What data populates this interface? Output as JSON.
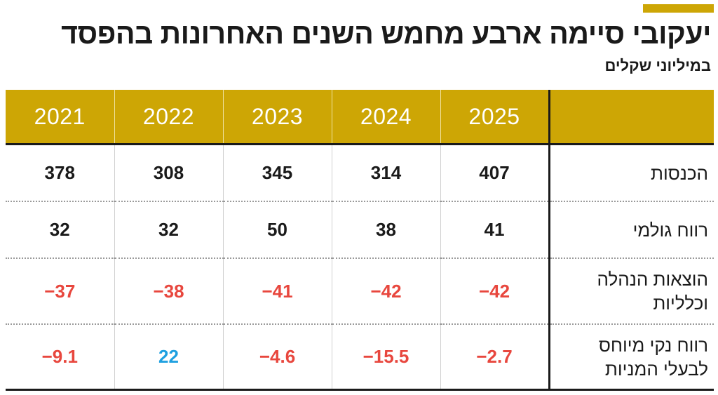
{
  "title": "יעקובי סיימה ארבע מחמש השנים האחרונות בהפסד",
  "subtitle": "במיליוני שקלים",
  "colors": {
    "accent": "#cda605",
    "negative": "#e8473e",
    "positive_highlight": "#1ea0e0",
    "text": "#1a1a1a"
  },
  "chart_data": {
    "type": "table",
    "columns": [
      "2021",
      "2022",
      "2023",
      "2024",
      "2025"
    ],
    "rows": [
      {
        "label": "הכנסות",
        "values": [
          "378",
          "308",
          "345",
          "314",
          "407"
        ]
      },
      {
        "label": "רווח גולמי",
        "values": [
          "32",
          "32",
          "50",
          "38",
          "41"
        ]
      },
      {
        "label": "הוצאות הנהלה וכלליות",
        "values": [
          "-37",
          "-38",
          "-41",
          "-42",
          "-42"
        ]
      },
      {
        "label": "רווח נקי מיוחס לבעלי המניות",
        "values": [
          "-9.1",
          "22",
          "-4.6",
          "-15.5",
          "-2.7"
        ]
      }
    ]
  }
}
